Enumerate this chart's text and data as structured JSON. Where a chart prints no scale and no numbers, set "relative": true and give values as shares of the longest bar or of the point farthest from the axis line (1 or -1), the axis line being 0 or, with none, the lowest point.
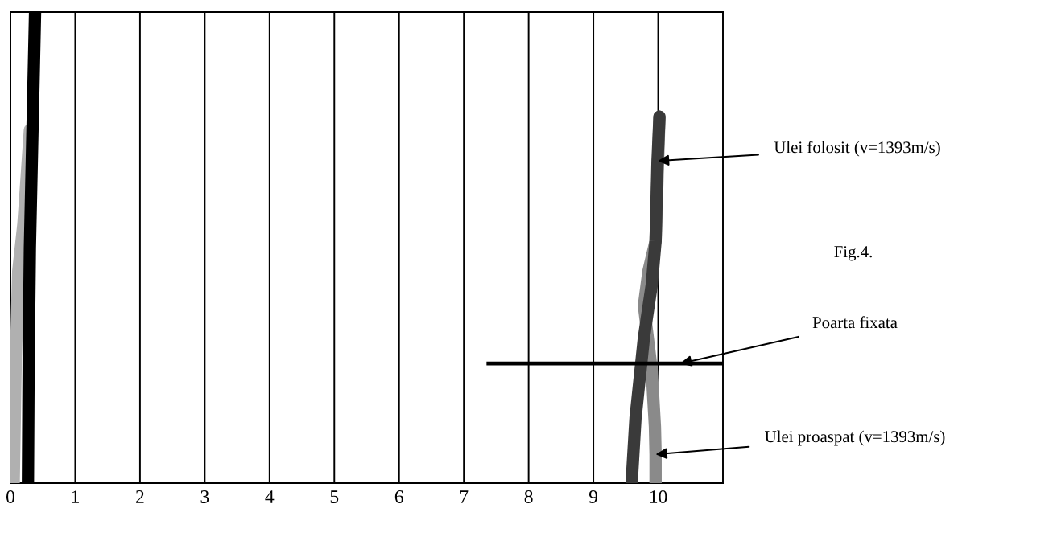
{
  "chart_data": {
    "type": "line",
    "xlim": [
      0,
      11
    ],
    "xticks": [
      0,
      1,
      2,
      3,
      4,
      5,
      6,
      7,
      8,
      9,
      10
    ],
    "relative": true,
    "grid": "x",
    "series": [
      {
        "color": "#b0b0b0",
        "x": [
          0.05,
          0.08,
          0.12,
          0.2,
          0.3
        ],
        "values": [
          0,
          0.25,
          0.45,
          0.55,
          0.75
        ]
      },
      {
        "color": "#000000",
        "x": [
          0.27,
          0.28,
          0.3,
          0.34,
          0.38
        ],
        "values": [
          0,
          0.25,
          0.5,
          0.75,
          1
        ]
      },
      {
        "color": "#8a8a8a",
        "x": [
          9.96,
          9.96,
          9.95,
          9.9,
          9.78,
          9.85,
          9.96,
          10.02
        ],
        "values": [
          0,
          0.061,
          0.12,
          0.24,
          0.377,
          0.45,
          0.514,
          0.778
        ]
      },
      {
        "color": "#3a3a3a",
        "x": [
          9.59,
          9.65,
          9.72,
          9.78,
          9.9,
          9.96,
          9.99,
          10.02
        ],
        "values": [
          0,
          0.138,
          0.23,
          0.309,
          0.42,
          0.514,
          0.684,
          0.778
        ]
      },
      {
        "color": "#000000",
        "line_style": "solid",
        "x": [
          7.35,
          11
        ],
        "values": [
          0.254,
          0.254
        ]
      }
    ],
    "annotations": [
      {
        "text": "Ulei folosit (v=1393m/s)",
        "x": 9.99,
        "y": 0.684
      },
      "Fig.4.",
      {
        "text": "Poarta fixata",
        "x": 10.34,
        "y": 0.254
      },
      {
        "text": "Ulei proaspat (v=1393m/s)",
        "x": 9.96,
        "y": 0.061
      }
    ]
  }
}
